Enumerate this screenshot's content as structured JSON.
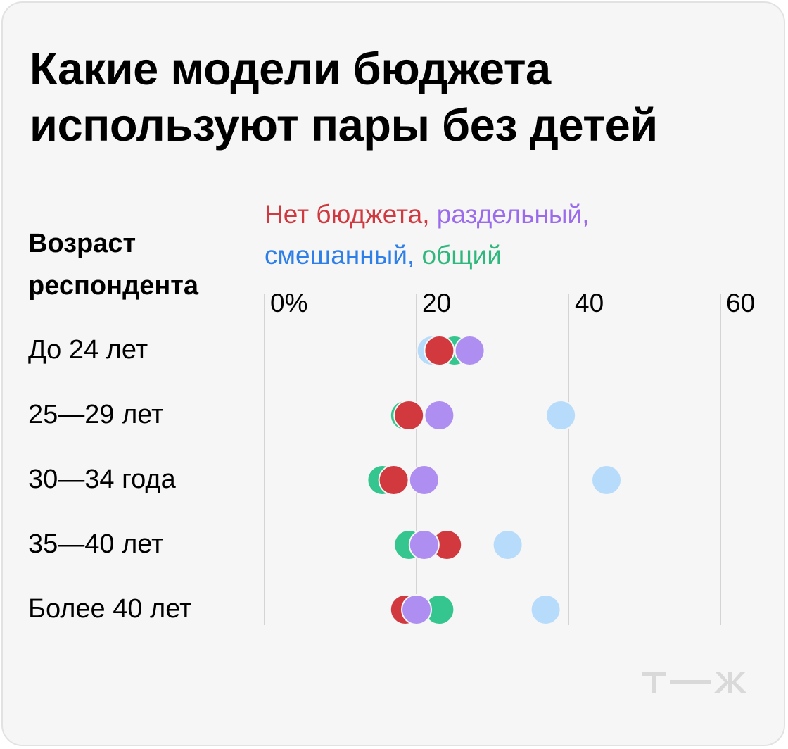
{
  "title_lines": [
    "Какие модели бюджета",
    "используют пары без детей"
  ],
  "row_header_lines": [
    "Возраст",
    "респондента"
  ],
  "legend": {
    "items": [
      {
        "label": "Нет бюджета,",
        "color": "#d0393f"
      },
      {
        "label": "раздельный,",
        "color": "#9a6cec"
      },
      {
        "label": "смешанный,",
        "color": "#2f7fe8"
      },
      {
        "label": "общий",
        "color": "#2fb77d"
      }
    ]
  },
  "chart_data": {
    "type": "scatter",
    "categories": [
      "До 24 лет",
      "25—29 лет",
      "30—34 года",
      "35—40 лет",
      "Более 40 лет"
    ],
    "x_ticks": [
      "0%",
      "20",
      "40",
      "60"
    ],
    "xlim": [
      0,
      60
    ],
    "grid": true,
    "series": [
      {
        "name": "Нет бюджета",
        "color": "#d2393f",
        "values": [
          23,
          19,
          17,
          24,
          18.5
        ]
      },
      {
        "name": "раздельный",
        "color": "#ae8ef0",
        "values": [
          27,
          23,
          21,
          21,
          20
        ]
      },
      {
        "name": "смешанный",
        "color": "#b7dcfb",
        "values": [
          22,
          39,
          45,
          32,
          37
        ]
      },
      {
        "name": "общий",
        "color": "#34c68e",
        "values": [
          25,
          18.5,
          15.5,
          19,
          23
        ]
      }
    ],
    "draw_order": [
      "смешанный",
      "общий",
      "Нет бюджета",
      "раздельный"
    ]
  },
  "logo": {
    "text": "т—ж",
    "color": "#d9d9d9"
  }
}
